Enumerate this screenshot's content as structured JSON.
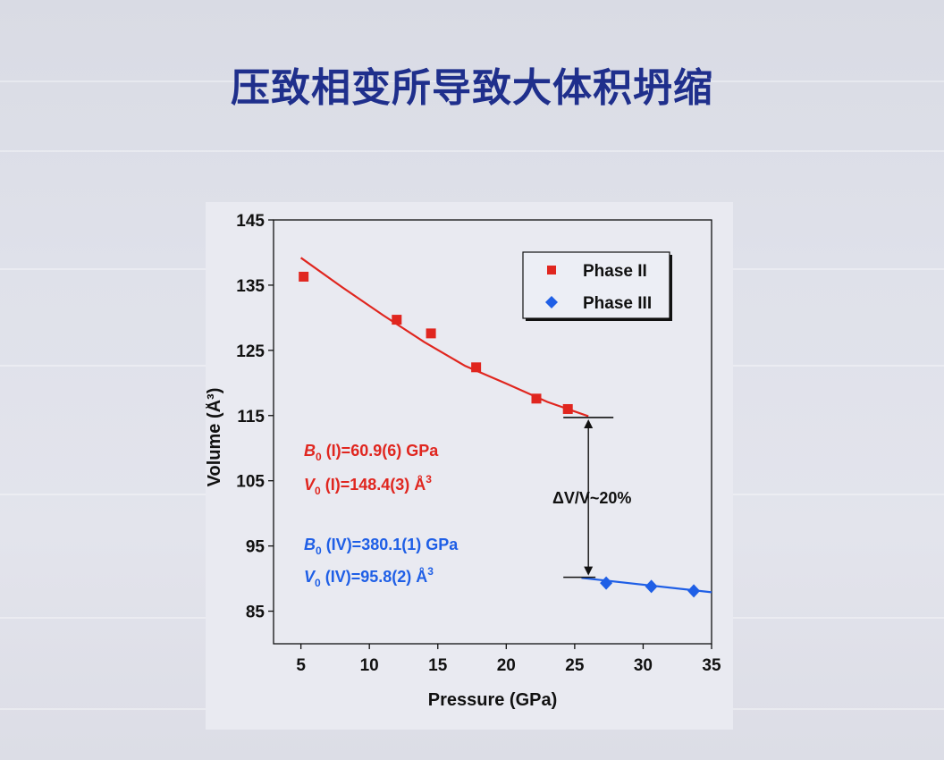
{
  "slide": {
    "title": "压致相变所导致大体积坍缩"
  },
  "chart_data": {
    "type": "scatter",
    "xlabel": "Pressure (GPa)",
    "ylabel": "Volume (Å³)",
    "xlim": [
      3,
      35
    ],
    "ylim": [
      80,
      145
    ],
    "xticks": [
      5,
      10,
      15,
      20,
      25,
      30,
      35
    ],
    "yticks": [
      85,
      95,
      105,
      115,
      125,
      135,
      145
    ],
    "legend_position": "top-right",
    "grid": false,
    "series": [
      {
        "name": "Phase II",
        "color": "#e0261f",
        "marker": "square",
        "points": [
          [
            5.2,
            136.3
          ],
          [
            12.0,
            129.7
          ],
          [
            14.5,
            127.6
          ],
          [
            17.8,
            122.4
          ],
          [
            22.2,
            117.6
          ],
          [
            24.5,
            116.0
          ]
        ],
        "fit": [
          [
            5.0,
            139.2
          ],
          [
            8.0,
            134.7
          ],
          [
            11.0,
            130.4
          ],
          [
            14.0,
            126.3
          ],
          [
            17.0,
            122.6
          ],
          [
            20.0,
            119.9
          ],
          [
            23.0,
            117.1
          ],
          [
            26.0,
            114.9
          ]
        ]
      },
      {
        "name": "Phase III",
        "color": "#1f5fe6",
        "marker": "diamond",
        "points": [
          [
            27.3,
            89.3
          ],
          [
            30.6,
            88.8
          ],
          [
            33.7,
            88.1
          ]
        ],
        "fit": [
          [
            25.5,
            90.1
          ],
          [
            35.0,
            87.9
          ]
        ]
      }
    ],
    "annotations": {
      "delta": "ΔV/V~20%",
      "phase1": {
        "b_name": "B",
        "b_sub": "0",
        "b_text": " (I)=60.9(6) GPa",
        "v_name": "V",
        "v_sub": "0",
        "v_text": " (I)=148.4(3) Å",
        "v_sup": "3",
        "color": "#e0261f"
      },
      "phase2": {
        "b_name": "B",
        "b_sub": "0",
        "b_text": " (IV)=380.1(1) GPa",
        "v_name": "V",
        "v_sub": "0",
        "v_text": " (IV)=95.8(2) Å",
        "v_sup": "3",
        "color": "#1f5fe6"
      },
      "arrow_top_y": 114.7,
      "arrow_bottom_y": 90.2,
      "arrow_x": 26.0
    }
  }
}
